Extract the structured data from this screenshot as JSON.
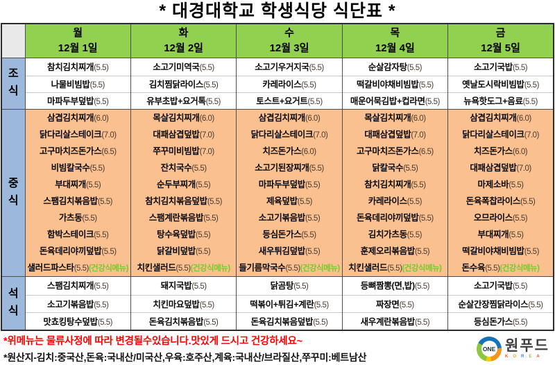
{
  "title": "* 대경대학교 학생식당 식단표 *",
  "colors": {
    "header_green": "#92d050",
    "lunch_orange": "#fac090",
    "label_blue": "#9cb9dc",
    "corner_gray": "#e9e9e9",
    "notice_red": "#ff0000",
    "health_green": "#76cc29",
    "price_brown": "#4a3b31"
  },
  "table": {
    "days": [
      {
        "day": "월",
        "date": "12월 1일"
      },
      {
        "day": "화",
        "date": "12월 2일"
      },
      {
        "day": "수",
        "date": "12월 3일"
      },
      {
        "day": "목",
        "date": "12월 4일"
      },
      {
        "day": "금",
        "date": "12월 5일"
      }
    ],
    "sections": [
      {
        "id": "breakfast",
        "label": "조식",
        "columns": [
          [
            {
              "name": "참치김치찌개",
              "price": "5.5"
            },
            {
              "name": "나물비빔밥",
              "price": "5.5"
            },
            {
              "name": "마파두부덮밥",
              "price": "5.5"
            }
          ],
          [
            {
              "name": "소고기미역국",
              "price": "5.5"
            },
            {
              "name": "김치찜닭라이스",
              "price": "5.5"
            },
            {
              "name": "유부초밥+요거톡",
              "price": "5.5"
            }
          ],
          [
            {
              "name": "소고기우거지국",
              "price": "5.5"
            },
            {
              "name": "카레라이스",
              "price": "5.5"
            },
            {
              "name": "토스트+요거트",
              "price": "5.5"
            }
          ],
          [
            {
              "name": "순살감자탕",
              "price": "5.5"
            },
            {
              "name": "떡갈비야채비빔밥",
              "price": "5.5"
            },
            {
              "name": "매운어묵김밥+컵라면",
              "price": "5.5"
            }
          ],
          [
            {
              "name": "소고기국밥",
              "price": "5.5"
            },
            {
              "name": "옛날도시락비빔밥",
              "price": "5.5"
            },
            {
              "name": "뉴욕핫도그+음료",
              "price": "5.5"
            }
          ]
        ]
      },
      {
        "id": "lunch",
        "label": "중식",
        "columns": [
          [
            {
              "name": "삼겹김치찌개",
              "price": "6.0"
            },
            {
              "name": "닭다리살스테이크",
              "price": "7.0"
            },
            {
              "name": "고구마치즈돈가스",
              "price": "6.5"
            },
            {
              "name": "비빔칼국수",
              "price": "5.5"
            },
            {
              "name": "부대찌개",
              "price": "5.5"
            },
            {
              "name": "스팸김치볶음밥",
              "price": "5.5"
            },
            {
              "name": "가츠동",
              "price": "5.5"
            },
            {
              "name": "함박스테이크",
              "price": "5.5"
            },
            {
              "name": "돈육데리야끼덮밥",
              "price": "5.5"
            },
            {
              "name": "샐러드파스타",
              "price": "5.5",
              "tag": "건강식메뉴"
            }
          ],
          [
            {
              "name": "목살김치찌개",
              "price": "6.0"
            },
            {
              "name": "대패삼겹덮밥",
              "price": "7.0"
            },
            {
              "name": "쭈꾸미비빔밥",
              "price": "7.0"
            },
            {
              "name": "잔치국수",
              "price": "5.5"
            },
            {
              "name": "순두부찌개",
              "price": "5.5"
            },
            {
              "name": "참치김치볶음덮밥",
              "price": "5.5"
            },
            {
              "name": "스팸계란볶음밥",
              "price": "5.5"
            },
            {
              "name": "탕수육덮밥",
              "price": "5.5"
            },
            {
              "name": "닭갈비덮밥",
              "price": "5.5"
            },
            {
              "name": "치킨샐러드",
              "price": "5.5",
              "tag": "건강식메뉴"
            }
          ],
          [
            {
              "name": "삼겹김치찌개",
              "price": "6.0"
            },
            {
              "name": "닭다리살스테이크",
              "price": "7.0"
            },
            {
              "name": "치즈돈가스",
              "price": "6.0"
            },
            {
              "name": "소고기된장찌개",
              "price": "5.5"
            },
            {
              "name": "마파두부덮밥",
              "price": "5.5"
            },
            {
              "name": "제육덮밥",
              "price": "5.5"
            },
            {
              "name": "소고기볶음밥",
              "price": "5.5"
            },
            {
              "name": "등심돈가스",
              "price": "5.5"
            },
            {
              "name": "새우튀김덮밥",
              "price": "5.5"
            },
            {
              "name": "들기름막국수",
              "price": "5.5",
              "tag": "건강식메뉴"
            }
          ],
          [
            {
              "name": "목살김치찌개",
              "price": "6.0"
            },
            {
              "name": "대패삼겹덮밥",
              "price": "7.0"
            },
            {
              "name": "고구마치즈돈가스",
              "price": "6.5"
            },
            {
              "name": "닭칼국수",
              "price": "5.5"
            },
            {
              "name": "참치김치찌개",
              "price": "5.5"
            },
            {
              "name": "카레라이스",
              "price": "5.5"
            },
            {
              "name": "돈육데리야끼덮밥",
              "price": "5.5"
            },
            {
              "name": "김치가츠동",
              "price": "5.5"
            },
            {
              "name": "훈제오리볶음밥",
              "price": "5.5"
            },
            {
              "name": "치킨샐러드",
              "price": "5.5",
              "tag": "건강식메뉴"
            }
          ],
          [
            {
              "name": "삼겹김치찌개",
              "price": "6.0"
            },
            {
              "name": "닭다리살스테이크",
              "price": "7.0"
            },
            {
              "name": "치즈돈가스",
              "price": "6.0"
            },
            {
              "name": "대패삼겹덮밥",
              "price": "7.0"
            },
            {
              "name": "마제소바",
              "price": "5.5"
            },
            {
              "name": "돈육폭찹라이스",
              "price": "5.5"
            },
            {
              "name": "오므라이스",
              "price": "5.5"
            },
            {
              "name": "부대찌개",
              "price": "5.5"
            },
            {
              "name": "떡갈비야채비빔밥",
              "price": "5.5"
            },
            {
              "name": "돈수육",
              "price": "5.5",
              "tag": "건강식메뉴"
            }
          ]
        ]
      },
      {
        "id": "dinner",
        "label": "석식",
        "columns": [
          [
            {
              "name": "스팸김치찌개",
              "price": "5.5"
            },
            {
              "name": "소고기볶음밥",
              "price": "5.5"
            },
            {
              "name": "맛쵸킹탕수덮밥",
              "price": "5.5"
            }
          ],
          [
            {
              "name": "돼지국밥",
              "price": "5.5"
            },
            {
              "name": "치킨마요덮밥",
              "price": "5.5"
            },
            {
              "name": "돈육김치볶음밥",
              "price": "5.5"
            }
          ],
          [
            {
              "name": "닭곰탕",
              "price": "5.5"
            },
            {
              "name": "떡볶이+튀김+계란",
              "price": "5.5"
            },
            {
              "name": "돈육김치볶음덮밥",
              "price": "5.5"
            }
          ],
          [
            {
              "name": "등뼈짬뽕(면,밥)",
              "price": "5.5"
            },
            {
              "name": "짜장면",
              "price": "5.5"
            },
            {
              "name": "새우계란볶음밥",
              "price": "5.5"
            }
          ],
          [
            {
              "name": "소고기국밥",
              "price": "5.5"
            },
            {
              "name": "순살간장찜닭라이스",
              "price": "5.5"
            },
            {
              "name": "등심돈가스",
              "price": "5.5"
            }
          ]
        ]
      }
    ]
  },
  "footer": {
    "notice": "*위메뉴는 물류사정에 따라 변경될수있습니다.맛있게 드시고 건강하세요~",
    "origin": "*원산지-김치:중국산,돈육:국내산/미국산,우육:호주산,계육:국내산/브라질산,쭈꾸미:베트남산"
  },
  "logo": {
    "badge": "ONE",
    "brand": "원푸드",
    "country": "KOREA"
  }
}
